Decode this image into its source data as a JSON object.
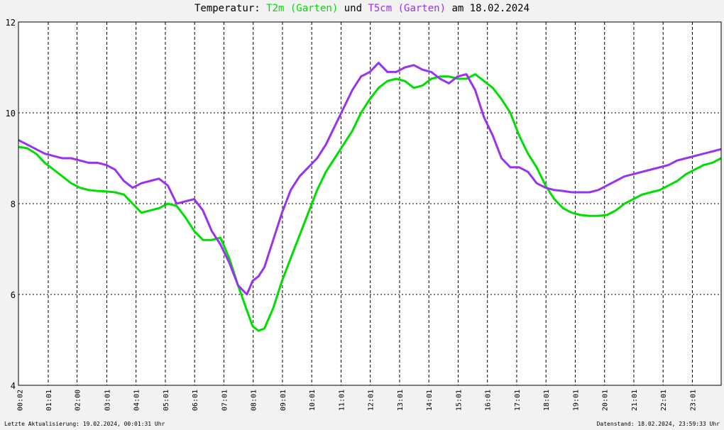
{
  "title": {
    "prefix": "Temperatur: ",
    "series1": "T2m (Garten)",
    "mid": " und ",
    "series2": "T5cm (Garten)",
    "suffix": " am 18.02.2024"
  },
  "footer": {
    "left": "Letzte Aktualisierung: 19.02.2024, 00:01:31 Uhr",
    "right": "Datenstand: 18.02.2024, 23:59:33 Uhr"
  },
  "chart_data": {
    "type": "line",
    "title": "Temperatur: T2m (Garten) und T5cm (Garten) am 18.02.2024",
    "xlabel": "",
    "ylabel": "",
    "xlim": [
      0,
      24
    ],
    "ylim": [
      4,
      12
    ],
    "grid": true,
    "y_ticks": [
      4,
      6,
      8,
      10,
      12
    ],
    "x_ticks": [
      {
        "h": 0.033,
        "label": "00:02"
      },
      {
        "h": 1.017,
        "label": "01:01"
      },
      {
        "h": 2.0,
        "label": "02:00"
      },
      {
        "h": 3.017,
        "label": "03:01"
      },
      {
        "h": 4.017,
        "label": "04:01"
      },
      {
        "h": 5.017,
        "label": "05:01"
      },
      {
        "h": 6.017,
        "label": "06:01"
      },
      {
        "h": 7.017,
        "label": "07:01"
      },
      {
        "h": 8.017,
        "label": "08:01"
      },
      {
        "h": 9.017,
        "label": "09:01"
      },
      {
        "h": 10.017,
        "label": "10:01"
      },
      {
        "h": 11.017,
        "label": "11:01"
      },
      {
        "h": 12.017,
        "label": "12:01"
      },
      {
        "h": 13.017,
        "label": "13:01"
      },
      {
        "h": 14.017,
        "label": "14:01"
      },
      {
        "h": 15.017,
        "label": "15:01"
      },
      {
        "h": 16.017,
        "label": "16:01"
      },
      {
        "h": 17.017,
        "label": "17:01"
      },
      {
        "h": 18.017,
        "label": "18:01"
      },
      {
        "h": 19.017,
        "label": "19:01"
      },
      {
        "h": 20.017,
        "label": "20:01"
      },
      {
        "h": 21.017,
        "label": "21:01"
      },
      {
        "h": 22.017,
        "label": "22:01"
      },
      {
        "h": 23.017,
        "label": "23:01"
      }
    ],
    "series": [
      {
        "name": "T2m (Garten)",
        "color": "#00dd00",
        "x": [
          0.0,
          0.3,
          0.6,
          0.9,
          1.2,
          1.5,
          1.8,
          2.1,
          2.4,
          2.7,
          3.0,
          3.3,
          3.6,
          3.9,
          4.2,
          4.5,
          4.8,
          5.1,
          5.4,
          5.7,
          6.0,
          6.3,
          6.6,
          6.9,
          7.2,
          7.5,
          7.8,
          8.0,
          8.2,
          8.4,
          8.7,
          9.0,
          9.3,
          9.6,
          9.9,
          10.2,
          10.5,
          10.8,
          11.1,
          11.4,
          11.7,
          12.0,
          12.3,
          12.6,
          12.9,
          13.2,
          13.5,
          13.8,
          14.1,
          14.4,
          14.7,
          15.0,
          15.3,
          15.6,
          15.9,
          16.2,
          16.5,
          16.8,
          17.1,
          17.4,
          17.7,
          18.0,
          18.3,
          18.6,
          18.9,
          19.2,
          19.5,
          19.8,
          20.1,
          20.4,
          20.7,
          21.0,
          21.3,
          21.6,
          21.9,
          22.2,
          22.5,
          22.8,
          23.1,
          23.4,
          23.7,
          24.0
        ],
        "values": [
          9.25,
          9.22,
          9.1,
          8.9,
          8.75,
          8.6,
          8.45,
          8.35,
          8.3,
          8.28,
          8.27,
          8.25,
          8.2,
          8.0,
          7.8,
          7.85,
          7.9,
          8.0,
          7.95,
          7.7,
          7.4,
          7.2,
          7.2,
          7.25,
          6.8,
          6.2,
          5.65,
          5.3,
          5.2,
          5.25,
          5.7,
          6.3,
          6.8,
          7.3,
          7.8,
          8.3,
          8.7,
          9.0,
          9.3,
          9.6,
          10.0,
          10.3,
          10.55,
          10.7,
          10.75,
          10.7,
          10.55,
          10.6,
          10.75,
          10.8,
          10.8,
          10.75,
          10.75,
          10.85,
          10.7,
          10.55,
          10.3,
          10.0,
          9.5,
          9.1,
          8.8,
          8.4,
          8.1,
          7.9,
          7.8,
          7.75,
          7.73,
          7.73,
          7.75,
          7.85,
          8.0,
          8.1,
          8.2,
          8.25,
          8.3,
          8.4,
          8.5,
          8.65,
          8.75,
          8.85,
          8.9,
          9.0
        ]
      },
      {
        "name": "T5cm (Garten)",
        "color": "#9932ee",
        "x": [
          0.0,
          0.3,
          0.6,
          0.9,
          1.2,
          1.5,
          1.8,
          2.1,
          2.4,
          2.7,
          3.0,
          3.3,
          3.6,
          3.9,
          4.2,
          4.5,
          4.8,
          5.1,
          5.4,
          5.7,
          6.0,
          6.3,
          6.6,
          6.9,
          7.2,
          7.5,
          7.8,
          8.0,
          8.2,
          8.4,
          8.7,
          9.0,
          9.3,
          9.6,
          9.9,
          10.2,
          10.5,
          10.8,
          11.1,
          11.4,
          11.7,
          12.0,
          12.3,
          12.6,
          12.9,
          13.2,
          13.5,
          13.8,
          14.1,
          14.4,
          14.7,
          15.0,
          15.3,
          15.6,
          15.9,
          16.2,
          16.5,
          16.8,
          17.1,
          17.4,
          17.7,
          18.0,
          18.3,
          18.6,
          18.9,
          19.2,
          19.5,
          19.8,
          20.1,
          20.4,
          20.7,
          21.0,
          21.3,
          21.6,
          21.9,
          22.2,
          22.5,
          22.8,
          23.1,
          23.4,
          23.7,
          24.0
        ],
        "values": [
          9.4,
          9.3,
          9.2,
          9.1,
          9.05,
          9.0,
          9.0,
          8.95,
          8.9,
          8.9,
          8.85,
          8.75,
          8.5,
          8.35,
          8.45,
          8.5,
          8.55,
          8.4,
          8.0,
          8.05,
          8.1,
          7.85,
          7.4,
          7.1,
          6.7,
          6.2,
          6.0,
          6.3,
          6.4,
          6.6,
          7.2,
          7.8,
          8.3,
          8.6,
          8.8,
          9.0,
          9.3,
          9.7,
          10.1,
          10.5,
          10.8,
          10.9,
          11.1,
          10.9,
          10.9,
          11.0,
          11.05,
          10.95,
          10.9,
          10.75,
          10.65,
          10.8,
          10.85,
          10.5,
          9.9,
          9.5,
          9.0,
          8.8,
          8.8,
          8.7,
          8.45,
          8.35,
          8.3,
          8.28,
          8.25,
          8.25,
          8.25,
          8.3,
          8.4,
          8.5,
          8.6,
          8.65,
          8.7,
          8.75,
          8.8,
          8.85,
          8.95,
          9.0,
          9.05,
          9.1,
          9.15,
          9.2
        ]
      }
    ]
  }
}
